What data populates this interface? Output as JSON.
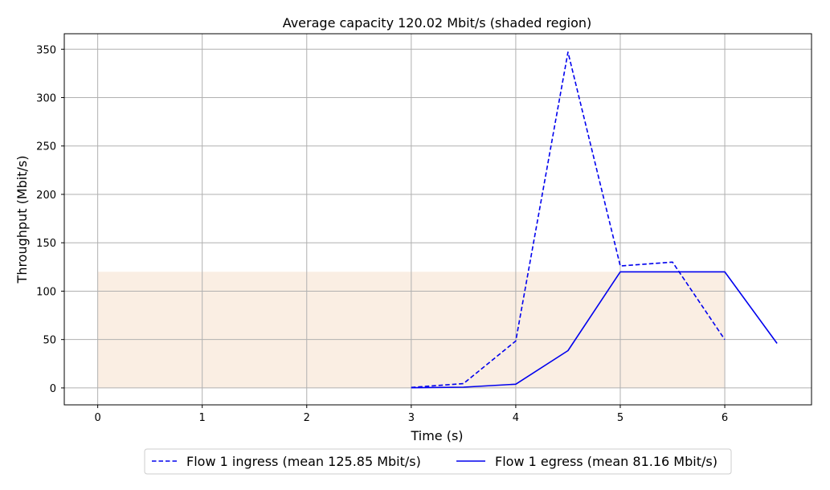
{
  "chart_data": {
    "type": "line",
    "title": "Average capacity 120.02 Mbit/s (shaded region)",
    "xlabel": "Time (s)",
    "ylabel": "Throughput (Mbit/s)",
    "xlim": [
      -0.32,
      6.83
    ],
    "ylim": [
      -17.5,
      366
    ],
    "xticks": [
      0,
      1,
      2,
      3,
      4,
      5,
      6
    ],
    "yticks": [
      0,
      50,
      100,
      150,
      200,
      250,
      300,
      350
    ],
    "grid": true,
    "legend_position": "bottom-center",
    "shaded_region": {
      "x_start": 0,
      "x_end": 6,
      "y_value": 120.02,
      "color": "#faeee3"
    },
    "series": [
      {
        "name": "Flow 1 ingress (mean 125.85 Mbit/s)",
        "style": "dashed",
        "color": "#0000ee",
        "x": [
          3.0,
          3.5,
          4.0,
          4.5,
          5.0,
          5.5,
          6.0
        ],
        "y": [
          0.5,
          4.5,
          48.5,
          347.0,
          126.0,
          130.0,
          50.0
        ]
      },
      {
        "name": "Flow 1 egress (mean 81.16 Mbit/s)",
        "style": "solid",
        "color": "#0000ee",
        "x": [
          3.0,
          3.5,
          4.0,
          4.5,
          5.0,
          5.5,
          6.0,
          6.5
        ],
        "y": [
          0.2,
          0.8,
          3.8,
          38.5,
          120.0,
          120.0,
          120.0,
          46.0
        ]
      }
    ]
  }
}
